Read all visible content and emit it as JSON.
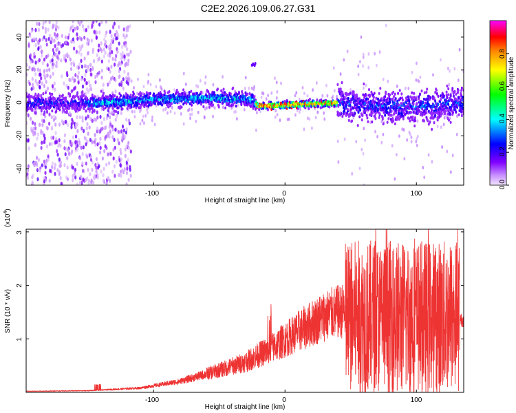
{
  "title": "C2E2.2026.109.06.27.G31",
  "chart_data": [
    {
      "type": "heatmap",
      "name": "spectrogram",
      "xlabel": "Height of straight line (km)",
      "ylabel": "Frequency (Hz)",
      "xlim": [
        -197,
        136
      ],
      "ylim": [
        -50,
        50
      ],
      "xticks": [
        -100,
        0,
        100
      ],
      "xtick_labels": [
        "-100",
        "0",
        "100"
      ],
      "yticks": [
        -40,
        -20,
        0,
        20,
        40
      ],
      "ytick_labels": [
        "-40",
        "-20",
        "0",
        "20",
        "40"
      ],
      "colorbar": {
        "label": "Normalized spectral amplitude",
        "range": [
          0,
          1
        ],
        "ticks": [
          0.0,
          0.2,
          0.4,
          0.6,
          0.8
        ],
        "tick_labels": [
          "0.0",
          "0.2",
          "0.4",
          "0.6",
          "0.8"
        ],
        "colors": [
          "#e8d0ff",
          "#8000ff",
          "#0000ff",
          "#00ffff",
          "#00ff00",
          "#ffff00",
          "#ff8000",
          "#ff0000",
          "#ff00ff"
        ]
      },
      "band_center_hz": [
        {
          "x": -197,
          "f": 0
        },
        {
          "x": -140,
          "f": 0
        },
        {
          "x": -100,
          "f": 2
        },
        {
          "x": -60,
          "f": 3
        },
        {
          "x": -25,
          "f": 2
        },
        {
          "x": -20,
          "f": -2
        },
        {
          "x": 40,
          "f": 0
        },
        {
          "x": 95,
          "f": -3
        },
        {
          "x": 136,
          "f": 0
        }
      ]
    },
    {
      "type": "line",
      "name": "snr",
      "xlabel": "Height of straight line (km)",
      "ylabel": "SNR (10 * v/v)",
      "multiplier_label": "(x10",
      "multiplier_exp": "4",
      "multiplier_close": ")",
      "xlim": [
        -197,
        136
      ],
      "ylim": [
        0,
        3.05
      ],
      "xticks": [
        -100,
        0,
        100
      ],
      "xtick_labels": [
        "-100",
        "0",
        "100"
      ],
      "yticks": [
        1,
        2,
        3
      ],
      "ytick_labels": [
        "1",
        "2",
        "3"
      ],
      "color": "#ee3333",
      "envelope": [
        {
          "x": -197,
          "y": 0.02
        },
        {
          "x": -150,
          "y": 0.03
        },
        {
          "x": -110,
          "y": 0.08
        },
        {
          "x": -80,
          "y": 0.2
        },
        {
          "x": -50,
          "y": 0.4
        },
        {
          "x": -30,
          "y": 0.55
        },
        {
          "x": -10,
          "y": 0.8
        },
        {
          "x": 10,
          "y": 1.1
        },
        {
          "x": 30,
          "y": 1.38
        },
        {
          "x": 45,
          "y": 1.48
        },
        {
          "x": 46,
          "y": 1.4
        },
        {
          "x": 136,
          "y": 1.4
        }
      ]
    }
  ]
}
